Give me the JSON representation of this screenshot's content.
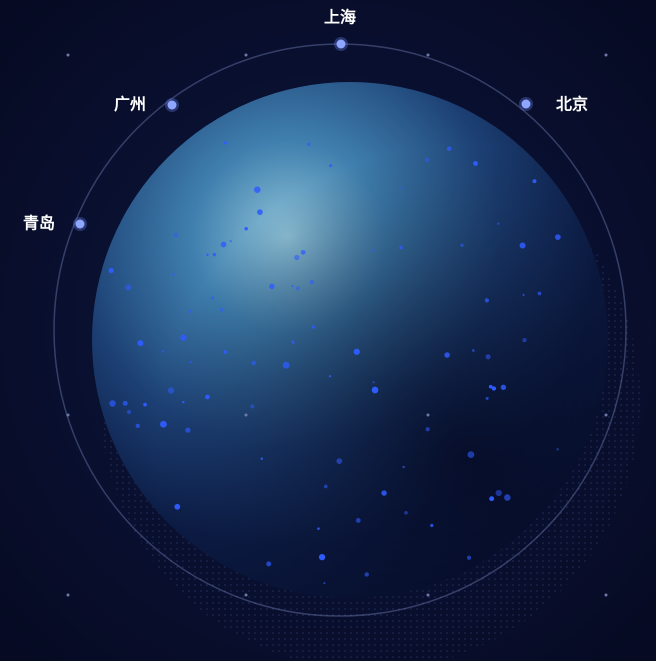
{
  "cities": [
    {
      "name": "上海"
    },
    {
      "name": "广州"
    },
    {
      "name": "北京"
    },
    {
      "name": "青岛"
    }
  ]
}
